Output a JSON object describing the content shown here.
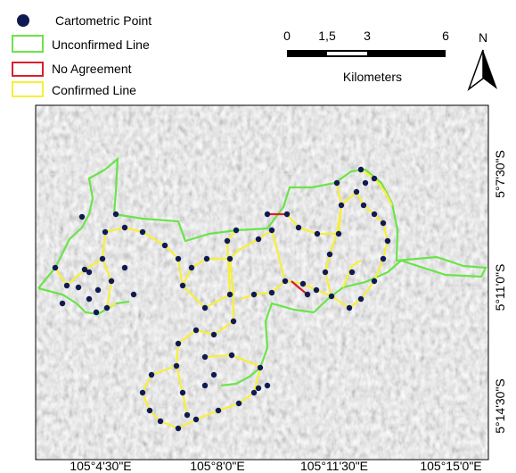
{
  "legend": {
    "items": [
      "Cartometric Point",
      "Unconfirmed Line",
      "No Agreement",
      "Confirmed Line"
    ]
  },
  "scale_bar": {
    "ticks": [
      "0",
      "1,5",
      "3",
      "6"
    ],
    "unit": "Kilometers"
  },
  "north_arrow": {
    "label": "N"
  },
  "map": {
    "x_labels": [
      "105°4'30\"E",
      "105°8'0\"E",
      "105°11'30\"E",
      "105°15'0\"E"
    ],
    "y_labels": [
      "5°7'30\"S",
      "5°11'0\"S",
      "5°14'30\"S"
    ]
  }
}
